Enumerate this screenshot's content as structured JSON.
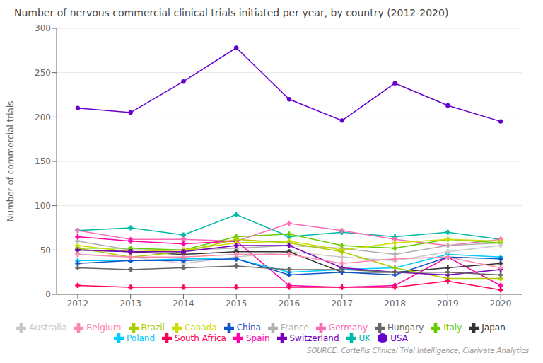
{
  "chart_data": {
    "type": "line",
    "title": "Number of nervous commercial clinical trials initiated per year, by country (2012-2020)",
    "ylabel": "Number of commercial trials",
    "annotations": [
      "SOURCE: Cortellis Clinical Trial Intelligence, Clarivate Analytics"
    ],
    "x": [
      2012,
      2013,
      2014,
      2015,
      2016,
      2017,
      2018,
      2019,
      2020
    ],
    "xlim": [
      2011.6,
      2020.4
    ],
    "xticks": [
      2012,
      2013,
      2014,
      2015,
      2016,
      2017,
      2018,
      2019,
      2020
    ],
    "ylim": [
      0,
      300
    ],
    "yticks": [
      0,
      50,
      100,
      150,
      200,
      250,
      300
    ],
    "grid": true,
    "legend": "bottom",
    "series": [
      {
        "name": "UK",
        "color": "#00b8a8",
        "marker": "plus",
        "values": [
          72,
          75,
          67,
          90,
          65,
          70,
          65,
          70,
          62
        ]
      },
      {
        "name": "Germany",
        "color": "#ff69b4",
        "marker": "plus",
        "values": [
          72,
          62,
          62,
          60,
          80,
          72,
          62,
          55,
          62
        ]
      },
      {
        "name": "France",
        "color": "#b0b0b0",
        "marker": "plus",
        "values": [
          60,
          50,
          50,
          52,
          55,
          52,
          45,
          55,
          58
        ]
      },
      {
        "name": "Italy",
        "color": "#66cc00",
        "marker": "plus",
        "values": [
          52,
          52,
          50,
          65,
          68,
          55,
          52,
          62,
          58
        ]
      },
      {
        "name": "Spain",
        "color": "#ff00aa",
        "marker": "plus",
        "values": [
          65,
          60,
          57,
          60,
          10,
          8,
          10,
          42,
          10
        ]
      },
      {
        "name": "Poland",
        "color": "#00ccff",
        "marker": "plus",
        "values": [
          38,
          38,
          40,
          40,
          25,
          28,
          30,
          45,
          42
        ]
      },
      {
        "name": "USA",
        "color": "#6600cc",
        "marker": "circle",
        "values": [
          210,
          205,
          240,
          278,
          220,
          196,
          238,
          213,
          195
        ]
      },
      {
        "name": "Canada",
        "color": "#ccdd00",
        "marker": "plus",
        "values": [
          55,
          48,
          50,
          58,
          60,
          50,
          58,
          62,
          60
        ]
      },
      {
        "name": "Australia",
        "color": "#c8c8c8",
        "marker": "plus",
        "values": [
          45,
          42,
          35,
          42,
          48,
          42,
          38,
          48,
          55
        ]
      },
      {
        "name": "Japan",
        "color": "#333333",
        "marker": "plus",
        "values": [
          50,
          48,
          45,
          48,
          48,
          25,
          25,
          30,
          35
        ]
      },
      {
        "name": "China",
        "color": "#1155cc",
        "marker": "plus",
        "values": [
          35,
          38,
          38,
          40,
          22,
          25,
          22,
          42,
          40
        ]
      },
      {
        "name": "Brazil",
        "color": "#aacc00",
        "marker": "plus",
        "values": [
          52,
          42,
          48,
          62,
          58,
          48,
          30,
          18,
          18
        ]
      },
      {
        "name": "South Africa",
        "color": "#ff0055",
        "marker": "plus",
        "values": [
          10,
          8,
          8,
          8,
          8,
          8,
          8,
          15,
          5
        ]
      },
      {
        "name": "Switzerland",
        "color": "#7700bb",
        "marker": "plus",
        "values": [
          50,
          48,
          48,
          55,
          55,
          30,
          25,
          22,
          28
        ]
      },
      {
        "name": "Belgium",
        "color": "#ff88aa",
        "marker": "plus",
        "values": [
          45,
          42,
          42,
          45,
          45,
          35,
          40,
          42,
          30
        ]
      },
      {
        "name": "Hungary",
        "color": "#666666",
        "marker": "plus",
        "values": [
          30,
          28,
          30,
          32,
          28,
          28,
          25,
          25,
          22
        ]
      }
    ]
  }
}
